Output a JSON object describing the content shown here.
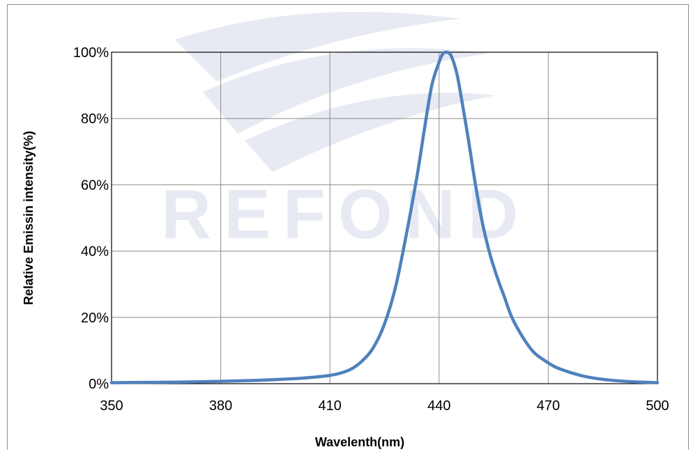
{
  "watermark": {
    "text": "REFOND"
  },
  "chart_data": {
    "type": "line",
    "title": "",
    "xlabel": "Wavelenth(nm)",
    "ylabel": "Relative Emissin intensity(%)",
    "xlim": [
      350,
      500
    ],
    "ylim": [
      0,
      1
    ],
    "x_ticks": [
      350,
      380,
      410,
      440,
      470,
      500
    ],
    "y_ticks": [
      0,
      0.2,
      0.4,
      0.6,
      0.8,
      1.0
    ],
    "x_tick_labels": [
      "350",
      "380",
      "410",
      "440",
      "470",
      "500"
    ],
    "y_tick_labels": [
      "0%",
      "20%",
      "40%",
      "60%",
      "80%",
      "100%"
    ],
    "grid": true,
    "legend": "none",
    "series": [
      {
        "color": "#4f81bd",
        "x": [
          350,
          360,
          370,
          380,
          390,
          400,
          405,
          410,
          413,
          416,
          419,
          422,
          425,
          428,
          431,
          434,
          436,
          438,
          440,
          441,
          442,
          443,
          444,
          445,
          446,
          448,
          450,
          452,
          454,
          456,
          458,
          460,
          463,
          466,
          469,
          472,
          476,
          480,
          485,
          490,
          495,
          500
        ],
        "y": [
          0.003,
          0.004,
          0.005,
          0.007,
          0.01,
          0.015,
          0.019,
          0.025,
          0.032,
          0.045,
          0.07,
          0.11,
          0.18,
          0.29,
          0.45,
          0.63,
          0.77,
          0.9,
          0.97,
          0.995,
          1.0,
          0.995,
          0.97,
          0.93,
          0.87,
          0.74,
          0.6,
          0.48,
          0.39,
          0.32,
          0.26,
          0.2,
          0.14,
          0.095,
          0.07,
          0.05,
          0.034,
          0.022,
          0.013,
          0.008,
          0.005,
          0.003
        ]
      }
    ]
  }
}
